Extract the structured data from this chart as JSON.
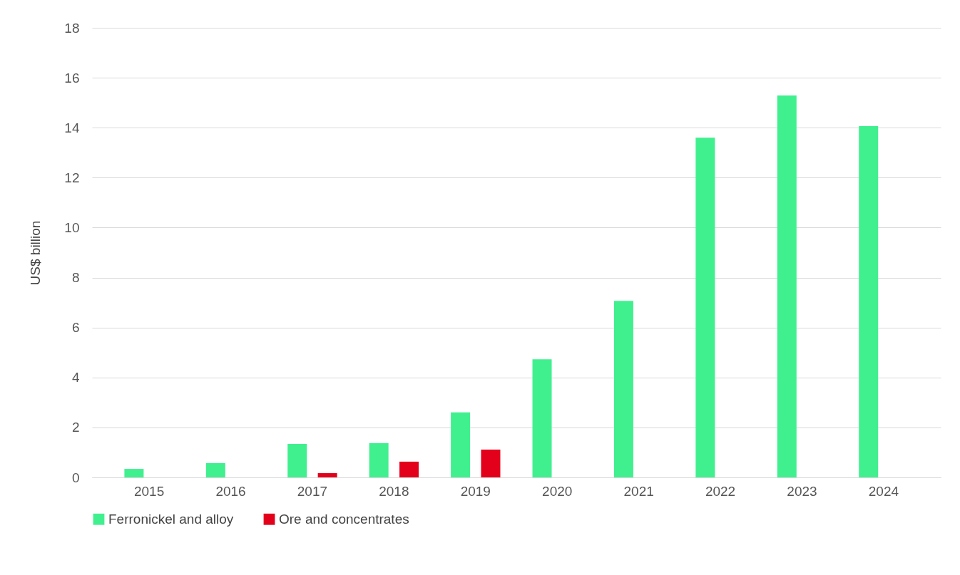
{
  "chart_data": {
    "type": "bar",
    "ylabel": "US$ billion",
    "categories": [
      "2015",
      "2016",
      "2017",
      "2018",
      "2019",
      "2020",
      "2021",
      "2022",
      "2023",
      "2024"
    ],
    "series": [
      {
        "name": "Ferronickel and alloy",
        "color": "#40f08f",
        "values": [
          0.34,
          0.57,
          1.34,
          1.37,
          2.6,
          4.73,
          7.07,
          13.6,
          15.29,
          14.06
        ]
      },
      {
        "name": "Ore and concentrates",
        "color": "#e3001b",
        "values": [
          null,
          null,
          0.17,
          0.63,
          1.11,
          null,
          null,
          null,
          null,
          null
        ]
      }
    ],
    "ylim": [
      0,
      18
    ],
    "yticks": [
      0,
      2,
      4,
      6,
      8,
      10,
      12,
      14,
      16,
      18
    ],
    "grid": "y",
    "legend": "bottom"
  }
}
